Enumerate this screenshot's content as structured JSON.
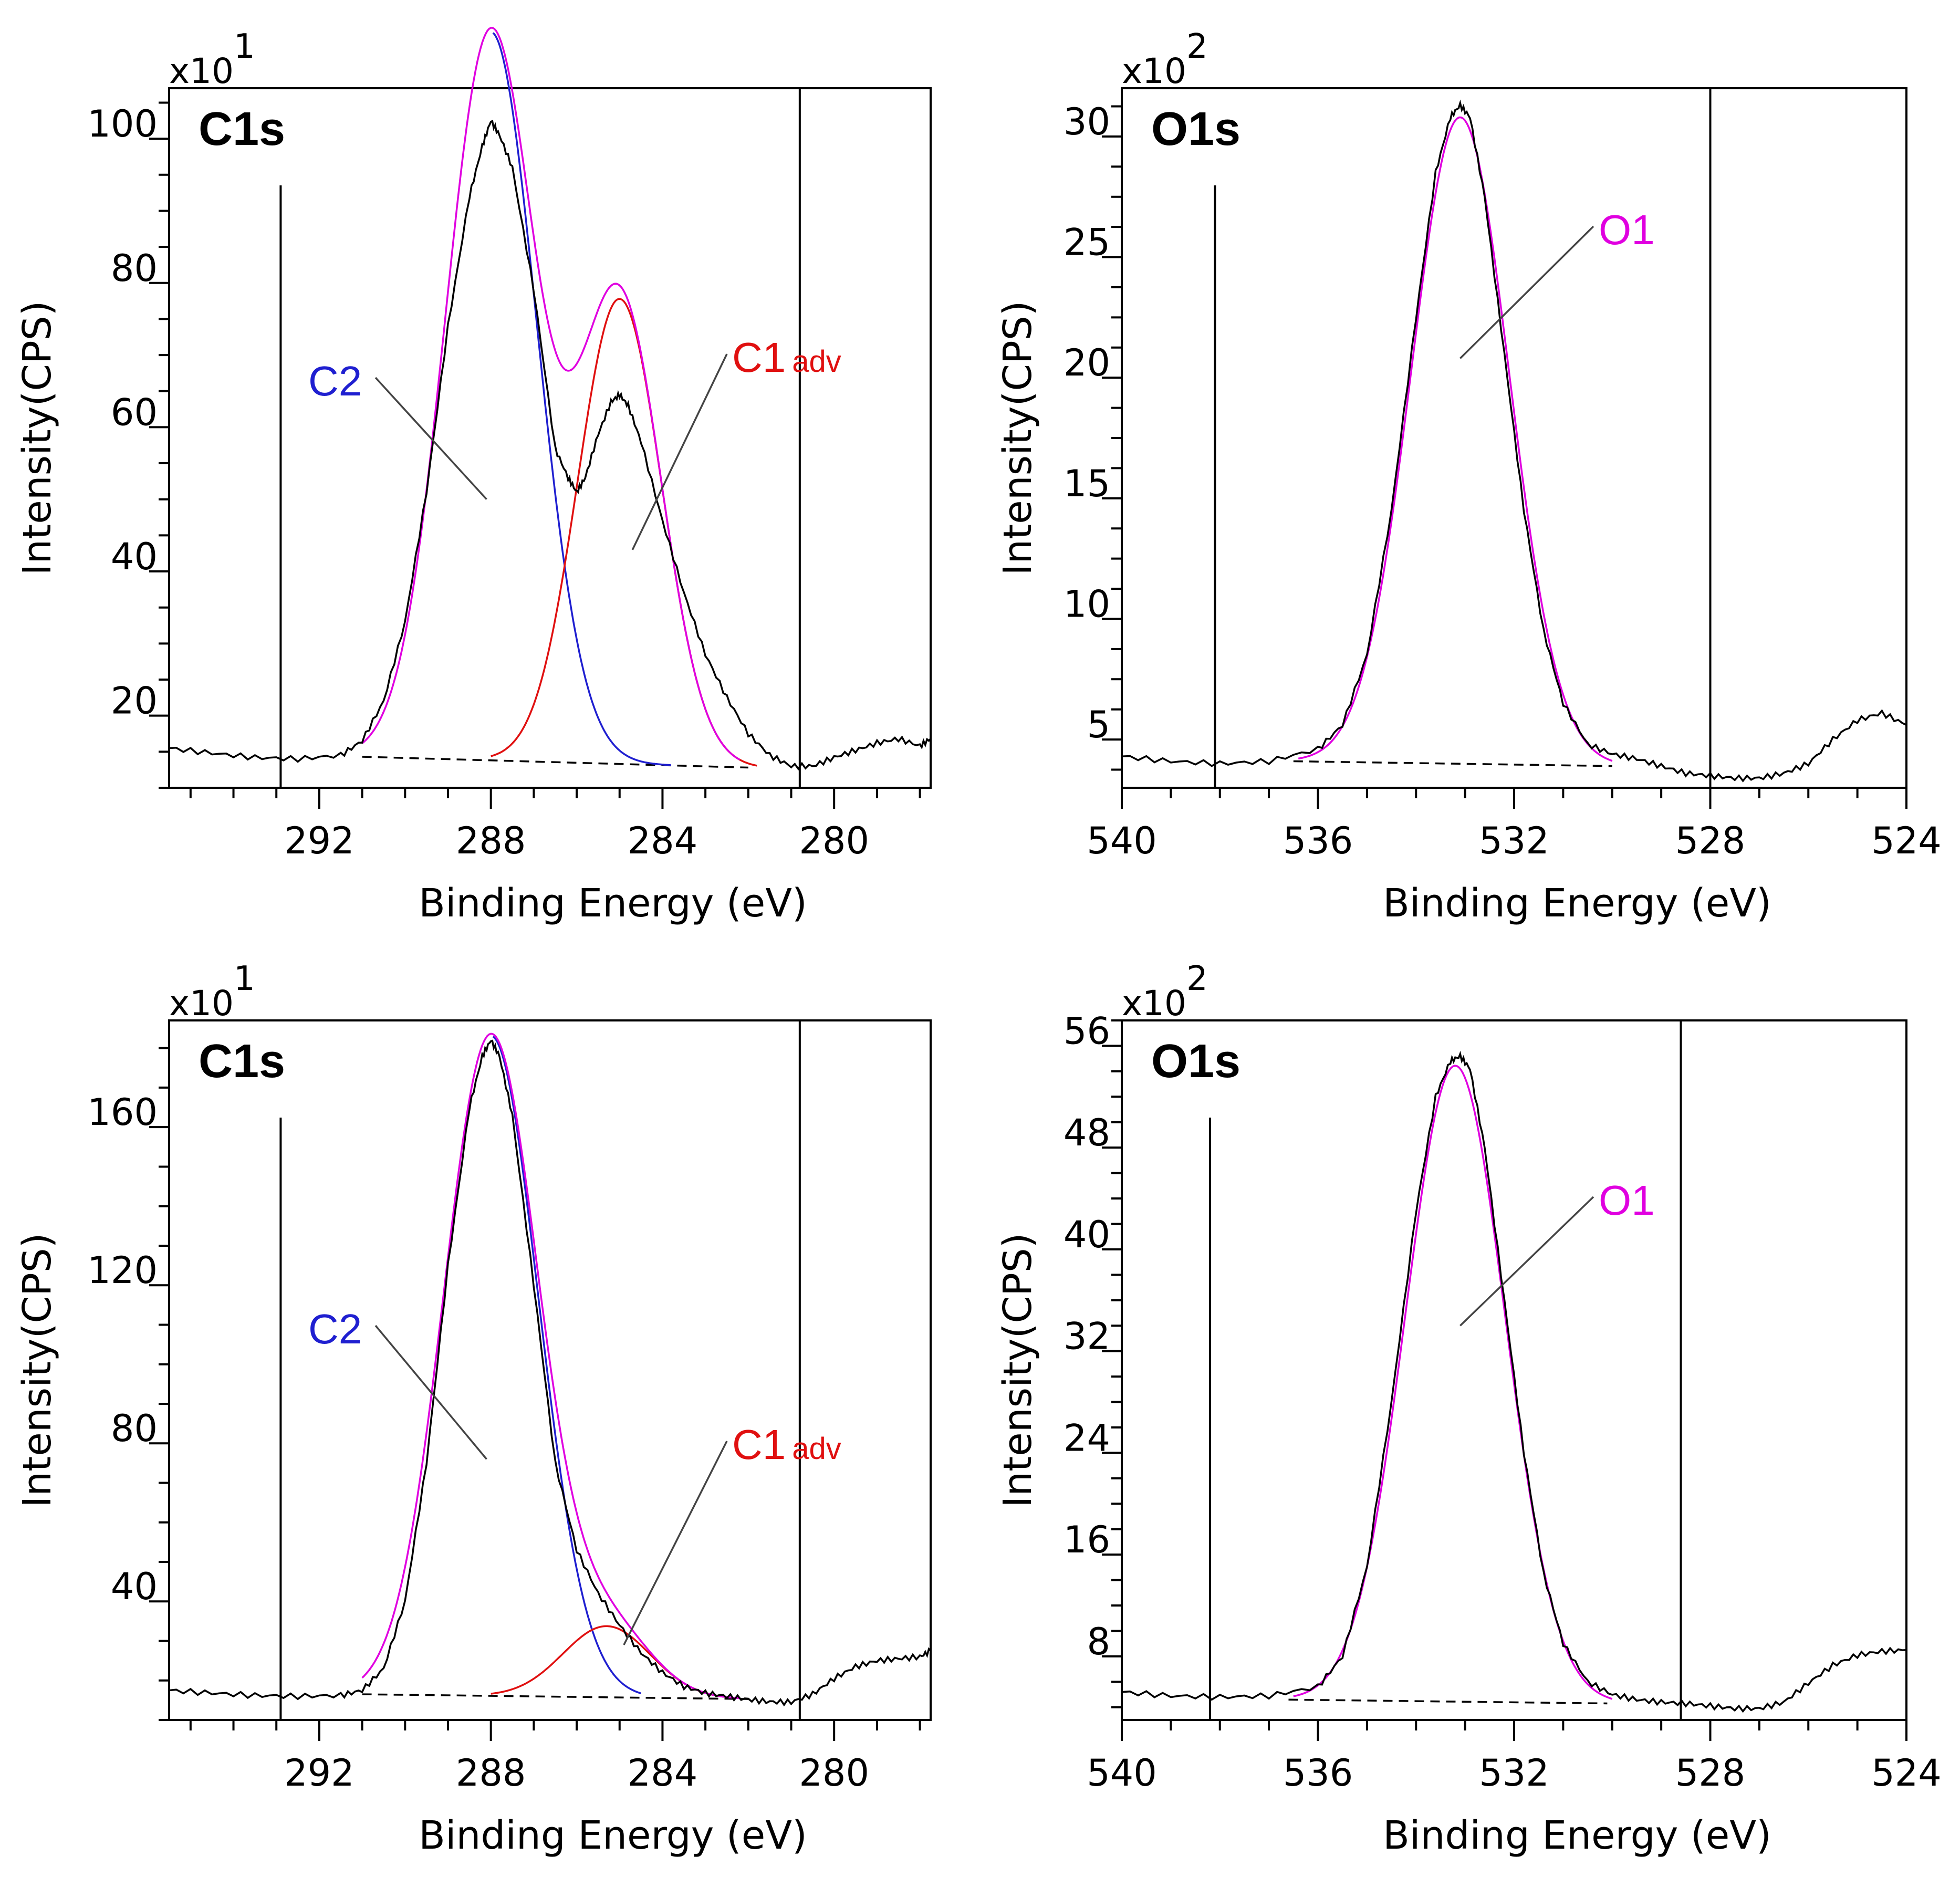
{
  "chart_data": [
    {
      "type": "line",
      "title": "C1s",
      "xlabel": "Binding Energy (eV)",
      "ylabel": "Intensity(CPS)",
      "y_multiplier_base": "x10",
      "y_multiplier_exp": "1",
      "xlim": [
        295.5,
        277.75
      ],
      "ylim": [
        10,
        107
      ],
      "x_ticks": [
        292,
        288,
        284,
        280
      ],
      "x_tick_labels": [
        "292",
        "288",
        "284",
        "280"
      ],
      "y_ticks": [
        20,
        40,
        60,
        80,
        100
      ],
      "y_tick_labels": [
        "20",
        "40",
        "60",
        "80",
        "100"
      ],
      "region_markers_x": [
        292.9,
        280.8
      ],
      "baseline": {
        "x": [
          291.0,
          282.0
        ],
        "y": [
          14.3,
          12.8
        ]
      },
      "components": [
        {
          "name": "C2",
          "color": "#1f1fd0",
          "center": 288.0,
          "height": 101.0,
          "fwhm": 2.5,
          "start": 287.95,
          "end": 283.8
        },
        {
          "name": "C1",
          "subscript": "adv",
          "color": "#e01010",
          "center": 285.0,
          "height": 64.5,
          "fwhm": 2.3,
          "start": 288.0,
          "end": 281.8
        }
      ],
      "envelope_color": "#e000e0",
      "annotations": [
        {
          "text": "C2",
          "color": "#1f1fd0",
          "pointer_x": 288.1,
          "pointer_y": 50
        },
        {
          "text": "C1",
          "sub": "adv",
          "color": "#e01010",
          "pointer_x": 284.7,
          "pointer_y": 43
        }
      ],
      "raw_data": {
        "x": [
          295.5,
          294.5,
          293.5,
          292.5,
          291.5,
          291.0,
          290.5,
          290.0,
          289.5,
          289.0,
          288.5,
          288.2,
          288.0,
          287.8,
          287.5,
          287.0,
          286.5,
          286.2,
          286.0,
          285.8,
          285.5,
          285.2,
          285.0,
          284.8,
          284.5,
          284.0,
          283.5,
          283.0,
          282.5,
          282.0,
          281.5,
          281.0,
          280.5,
          280.0,
          279.5,
          279.0,
          278.5,
          278.0,
          277.75
        ],
        "y": [
          15.5,
          14.8,
          14.2,
          14.0,
          14.5,
          16.5,
          22.0,
          33.0,
          51.0,
          74.0,
          92.0,
          99.0,
          102.5,
          100.5,
          96.0,
          79.0,
          57.0,
          53.0,
          51.0,
          53.0,
          59.0,
          63.5,
          64.5,
          63.0,
          58.0,
          47.0,
          37.0,
          28.5,
          22.5,
          17.5,
          14.5,
          13.0,
          13.0,
          14.2,
          15.2,
          16.2,
          16.8,
          15.8,
          16.8
        ]
      }
    },
    {
      "type": "line",
      "title": "O1s",
      "xlabel": "Binding Energy (eV)",
      "ylabel": "Intensity(CPS)",
      "y_multiplier_base": "x10",
      "y_multiplier_exp": "2",
      "xlim": [
        540,
        524
      ],
      "ylim": [
        3,
        32
      ],
      "x_ticks": [
        540,
        536,
        532,
        528,
        524
      ],
      "x_tick_labels": [
        "540",
        "536",
        "532",
        "528",
        "524"
      ],
      "y_ticks": [
        5,
        10,
        15,
        20,
        25,
        30
      ],
      "y_tick_labels": [
        "5",
        "10",
        "15",
        "20",
        "25",
        "30"
      ],
      "region_markers_x": [
        538.1,
        528.0
      ],
      "baseline": {
        "x": [
          536.5,
          530.0
        ],
        "y": [
          4.1,
          3.9
        ]
      },
      "components": [
        {
          "name": "O1",
          "color": "#e000e0",
          "center": 533.1,
          "height": 26.8,
          "fwhm": 2.35,
          "start": 536.4,
          "end": 530.0
        }
      ],
      "envelope_color": null,
      "annotations": [
        {
          "text": "O1",
          "color": "#e000e0",
          "pointer_x": 533.1,
          "pointer_y": 20.8
        }
      ],
      "raw_data": {
        "x": [
          540.0,
          539.0,
          538.0,
          537.0,
          536.0,
          535.5,
          535.0,
          534.5,
          534.0,
          533.6,
          533.3,
          533.1,
          532.9,
          532.6,
          532.2,
          531.8,
          531.4,
          531.0,
          530.5,
          530.0,
          529.5,
          529.0,
          528.5,
          528.0,
          527.5,
          527.0,
          526.5,
          526.0,
          525.5,
          525.0,
          524.5,
          524.0
        ],
        "y": [
          4.3,
          4.1,
          4.0,
          4.1,
          4.6,
          5.6,
          8.5,
          14.5,
          22.5,
          28.5,
          30.8,
          31.3,
          30.8,
          27.5,
          21.0,
          14.5,
          9.5,
          6.5,
          4.8,
          4.4,
          4.2,
          3.9,
          3.6,
          3.5,
          3.4,
          3.4,
          3.6,
          4.0,
          5.0,
          5.8,
          6.1,
          5.6
        ]
      }
    },
    {
      "type": "line",
      "title": "C1s",
      "xlabel": "Binding Energy (eV)",
      "ylabel": "Intensity(CPS)",
      "y_multiplier_base": "x10",
      "y_multiplier_exp": "1",
      "xlim": [
        295.5,
        277.75
      ],
      "ylim": [
        10,
        187
      ],
      "x_ticks": [
        292,
        288,
        284,
        280
      ],
      "x_tick_labels": [
        "292",
        "288",
        "284",
        "280"
      ],
      "y_ticks": [
        40,
        80,
        120,
        160
      ],
      "y_tick_labels": [
        "40",
        "80",
        "120",
        "160"
      ],
      "region_markers_x": [
        292.9,
        280.8
      ],
      "baseline": {
        "x": [
          291.0,
          282.0
        ],
        "y": [
          16.5,
          15.3
        ]
      },
      "components": [
        {
          "name": "C2",
          "color": "#1f1fd0",
          "center": 288.0,
          "height": 167.0,
          "fwhm": 2.6,
          "start": 287.95,
          "end": 284.5
        },
        {
          "name": "C1",
          "subscript": "adv",
          "color": "#e01010",
          "center": 285.3,
          "height": 18.0,
          "fwhm": 2.4,
          "start": 288.0,
          "end": 282.5
        }
      ],
      "envelope_color": "#e000e0",
      "annotations": [
        {
          "text": "C2",
          "color": "#1f1fd0",
          "pointer_x": 288.1,
          "pointer_y": 76
        },
        {
          "text": "C1",
          "sub": "adv",
          "color": "#e01010",
          "pointer_x": 284.9,
          "pointer_y": 29
        }
      ],
      "raw_data": {
        "x": [
          295.5,
          294.5,
          293.5,
          292.5,
          291.5,
          291.0,
          290.5,
          290.0,
          289.5,
          289.0,
          288.5,
          288.2,
          288.0,
          287.8,
          287.5,
          287.0,
          286.5,
          286.0,
          285.5,
          285.0,
          284.5,
          284.0,
          283.5,
          283.0,
          282.5,
          282.0,
          281.5,
          281.0,
          280.5,
          280.0,
          279.5,
          279.0,
          278.5,
          278.0,
          277.75
        ],
        "y": [
          17.5,
          16.8,
          16.2,
          16.0,
          16.2,
          17.5,
          23.0,
          40.0,
          75.0,
          125.0,
          165.0,
          178.0,
          182.0,
          178.0,
          163.0,
          120.0,
          75.0,
          53.0,
          42.0,
          34.0,
          27.0,
          22.0,
          18.5,
          16.8,
          16.0,
          15.2,
          14.6,
          14.5,
          16.5,
          20.5,
          23.5,
          25.0,
          25.5,
          26.0,
          27.5
        ]
      }
    },
    {
      "type": "line",
      "title": "O1s",
      "xlabel": "Binding Energy (eV)",
      "ylabel": "Intensity(CPS)",
      "y_multiplier_base": "x10",
      "y_multiplier_exp": "2",
      "xlim": [
        540,
        524
      ],
      "ylim": [
        3,
        58
      ],
      "x_ticks": [
        540,
        536,
        532,
        528,
        524
      ],
      "x_tick_labels": [
        "540",
        "536",
        "532",
        "528",
        "524"
      ],
      "y_ticks": [
        8,
        16,
        24,
        32,
        40,
        48,
        56
      ],
      "y_tick_labels": [
        "8",
        "16",
        "24",
        "32",
        "40",
        "48",
        "56"
      ],
      "region_markers_x": [
        538.2,
        528.6
      ],
      "baseline": {
        "x": [
          536.6,
          530.1
        ],
        "y": [
          4.6,
          4.3
        ]
      },
      "components": [
        {
          "name": "O1",
          "color": "#e000e0",
          "center": 533.2,
          "height": 50.0,
          "fwhm": 2.4,
          "start": 536.5,
          "end": 530.0
        }
      ],
      "envelope_color": null,
      "annotations": [
        {
          "text": "O1",
          "color": "#e000e0",
          "pointer_x": 533.1,
          "pointer_y": 34
        }
      ],
      "raw_data": {
        "x": [
          540.0,
          539.0,
          538.0,
          537.0,
          536.0,
          535.5,
          535.0,
          534.5,
          534.0,
          533.6,
          533.3,
          533.1,
          532.9,
          532.6,
          532.2,
          531.8,
          531.4,
          531.0,
          530.5,
          530.0,
          529.5,
          529.0,
          528.5,
          528.0,
          527.5,
          527.0,
          526.5,
          526.0,
          525.5,
          525.0,
          524.5,
          524.0
        ],
        "y": [
          5.2,
          4.9,
          4.8,
          4.9,
          5.6,
          8.0,
          15.0,
          28.0,
          43.0,
          52.0,
          54.8,
          55.2,
          54.2,
          48.0,
          36.0,
          24.0,
          14.5,
          9.0,
          6.0,
          5.0,
          4.6,
          4.4,
          4.3,
          4.1,
          3.9,
          3.9,
          4.4,
          5.9,
          7.3,
          8.1,
          8.4,
          8.5
        ]
      }
    }
  ]
}
